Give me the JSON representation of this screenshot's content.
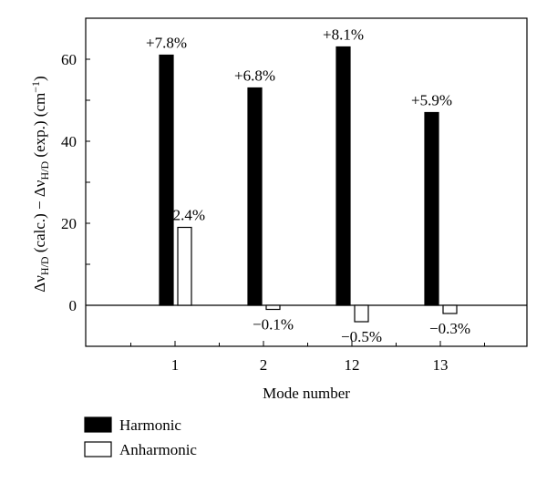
{
  "chart_data": {
    "type": "bar",
    "categories": [
      "1",
      "2",
      "12",
      "13"
    ],
    "series": [
      {
        "name": "Harmonic",
        "values": [
          61,
          53,
          63,
          47
        ],
        "labels": [
          "+7.8%",
          "+6.8%",
          "+8.1%",
          "+5.9%"
        ],
        "fill": "#000000"
      },
      {
        "name": "Anharmonic",
        "values": [
          19,
          -1,
          -4,
          -2
        ],
        "labels": [
          "+2.4%",
          "−0.1%",
          "−0.5%",
          "−0.3%"
        ],
        "fill": "#ffffff"
      }
    ],
    "xlabel": "Mode number",
    "ylabel": {
      "parts": [
        "Δν",
        "H/D",
        " (calc.) − Δν",
        "H/D",
        " (exp.) (cm",
        "−1",
        ")"
      ]
    },
    "ylim": [
      -10,
      70
    ],
    "yticks": [
      0,
      20,
      40,
      60
    ],
    "zero_line": true,
    "grid": false,
    "legend_placement": "bottom-left"
  }
}
